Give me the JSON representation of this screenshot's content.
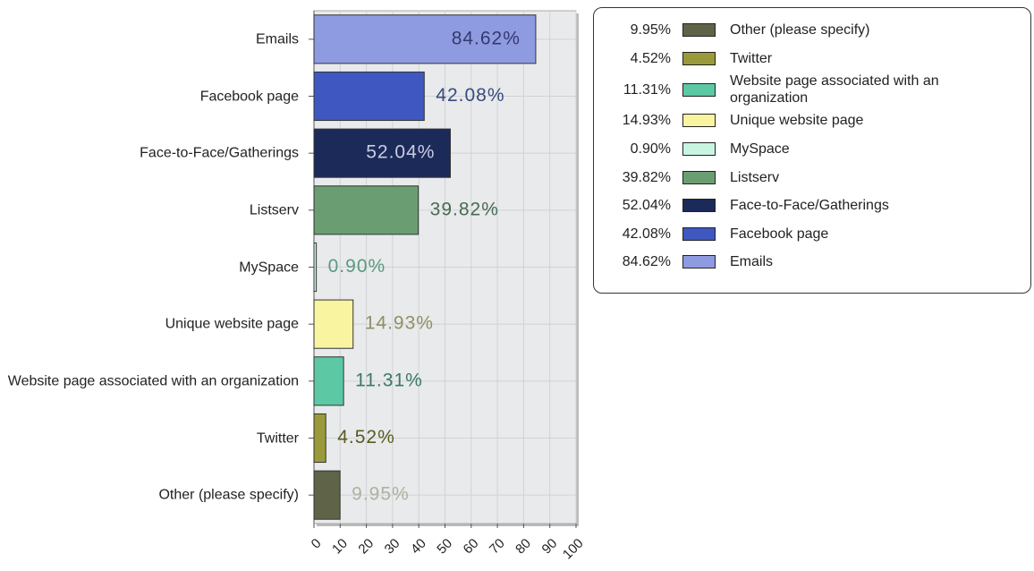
{
  "chart_data": {
    "type": "bar",
    "orientation": "horizontal",
    "categories": [
      "Emails",
      "Facebook page",
      "Face-to-Face/Gatherings",
      "Listserv",
      "MySpace",
      "Unique website page",
      "Website page associated with an organization",
      "Twitter",
      "Other (please specify)"
    ],
    "values": [
      84.62,
      42.08,
      52.04,
      39.82,
      0.9,
      14.93,
      11.31,
      4.52,
      9.95
    ],
    "value_labels": [
      "84.62%",
      "42.08%",
      "52.04%",
      "39.82%",
      "0.90%",
      "14.93%",
      "11.31%",
      "4.52%",
      "9.95%"
    ],
    "colors": [
      "#8f9be0",
      "#3f57c0",
      "#1c2a5a",
      "#6a9e72",
      "#c8f5e2",
      "#f8f4a0",
      "#5cc8a4",
      "#9a9a3a",
      "#5f6449"
    ],
    "label_colors": [
      "#333a70",
      "#3a4a80",
      "#c8cde0",
      "#4a6a50",
      "#5a9a80",
      "#909060",
      "#3a7a60",
      "#5a5a20",
      "#b0b0a0"
    ],
    "xlim": [
      0,
      100
    ],
    "xticks": [
      0,
      10,
      20,
      30,
      40,
      50,
      60,
      70,
      80,
      90,
      100
    ],
    "grid": true,
    "legend": "right"
  }
}
